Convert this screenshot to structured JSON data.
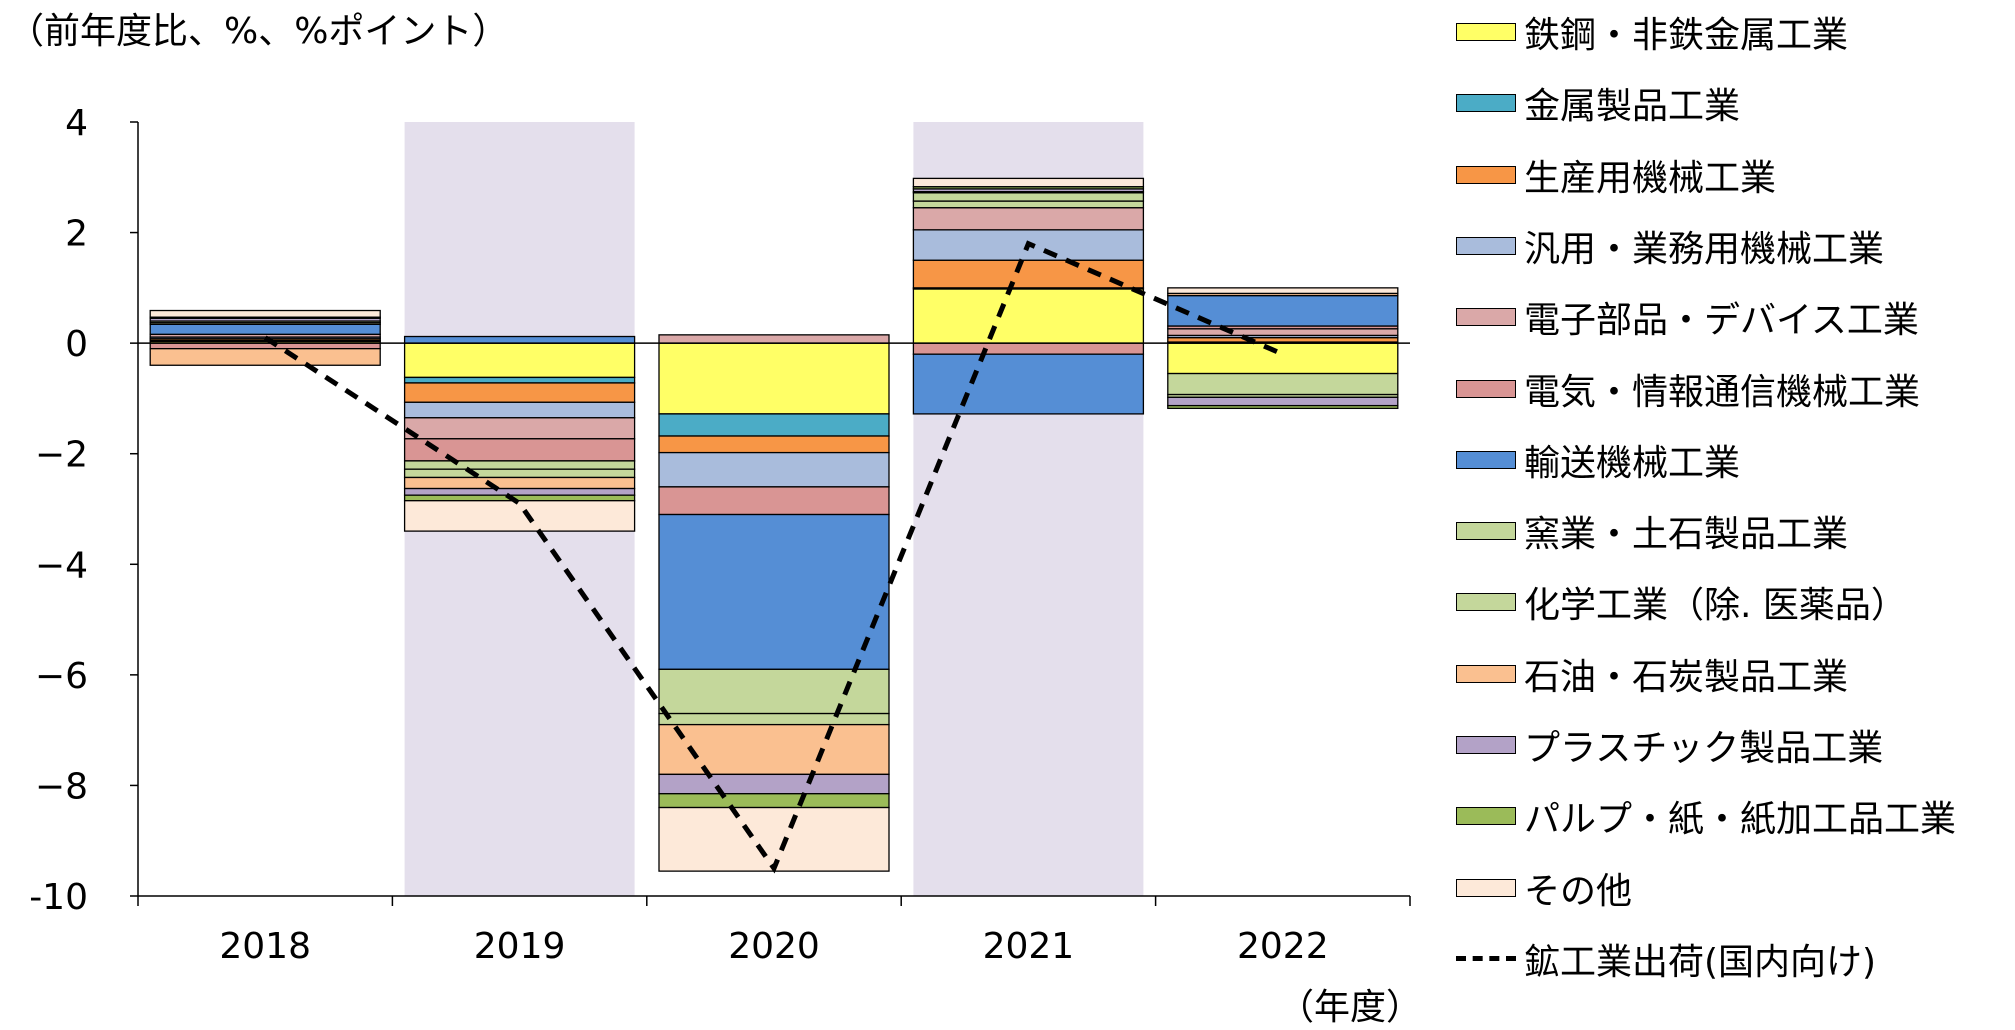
{
  "chart_data": {
    "type": "bar",
    "stacked": true,
    "unit_label": "（前年度比、%、%ポイント）",
    "xunit_label": "（年度）",
    "categories": [
      "2018",
      "2019",
      "2020",
      "2021",
      "2022"
    ],
    "ylim": [
      -10,
      4
    ],
    "yticks": [
      4,
      2,
      0,
      -2,
      -4,
      -6,
      -8,
      -10
    ],
    "ytick_labels": [
      "4",
      "2",
      "0",
      "−2",
      "−4",
      "−6",
      "−8",
      "-10"
    ],
    "shaded_categories": [
      "2019",
      "2021"
    ],
    "shade_color": "#e4dfec",
    "legend_position": "right",
    "series": [
      {
        "name": "鉄鋼・非鉄金属工業",
        "color": "#ffff66",
        "values": [
          0.03,
          -0.62,
          -1.28,
          0.98,
          -0.55
        ]
      },
      {
        "name": "金属製品工業",
        "color": "#4bacc6",
        "values": [
          0.02,
          -0.1,
          -0.4,
          0.02,
          0.02
        ]
      },
      {
        "name": "生産用機械工業",
        "color": "#f79646",
        "values": [
          0.03,
          -0.35,
          -0.3,
          0.5,
          0.08
        ]
      },
      {
        "name": "汎用・業務用機械工業",
        "color": "#a9bcdc",
        "values": [
          0.03,
          -0.28,
          -0.62,
          0.55,
          0.04
        ]
      },
      {
        "name": "電子部品・デバイス工業",
        "color": "#daa8a8",
        "values": [
          0.05,
          -0.38,
          0.15,
          0.4,
          0.12
        ]
      },
      {
        "name": "電気・情報通信機械工業",
        "color": "#d99594",
        "values": [
          -0.1,
          -0.4,
          -0.5,
          -0.2,
          0.05
        ]
      },
      {
        "name": "輸送機械工業",
        "color": "#558ed5",
        "values": [
          0.18,
          0.12,
          -2.8,
          -1.08,
          0.55
        ]
      },
      {
        "name": "窯業・土石製品工業",
        "color": "#c4d79b",
        "values": [
          0.03,
          -0.15,
          -0.8,
          0.12,
          -0.38
        ]
      },
      {
        "name": "化学工業（除. 医薬品）",
        "color": "#c4d79b",
        "values": [
          0.03,
          -0.15,
          -0.2,
          0.15,
          -0.05
        ]
      },
      {
        "name": "石油・石炭製品工業",
        "color": "#fac090",
        "values": [
          -0.3,
          -0.2,
          -0.9,
          0.02,
          0.04
        ]
      },
      {
        "name": "プラスチック製品工業",
        "color": "#b3a2c7",
        "values": [
          0.05,
          -0.12,
          -0.35,
          0.05,
          -0.15
        ]
      },
      {
        "name": "パルプ・紙・紙加工品工業",
        "color": "#9bbb59",
        "values": [
          0.02,
          -0.1,
          -0.25,
          0.04,
          -0.05
        ]
      },
      {
        "name": "その他",
        "color": "#fde9d9",
        "values": [
          0.12,
          -0.55,
          -1.15,
          0.15,
          0.1
        ]
      }
    ],
    "line_series": {
      "name": "鉱工業出荷(国内向け)",
      "values": [
        0.1,
        -2.9,
        -9.5,
        1.8,
        -0.2
      ]
    }
  }
}
